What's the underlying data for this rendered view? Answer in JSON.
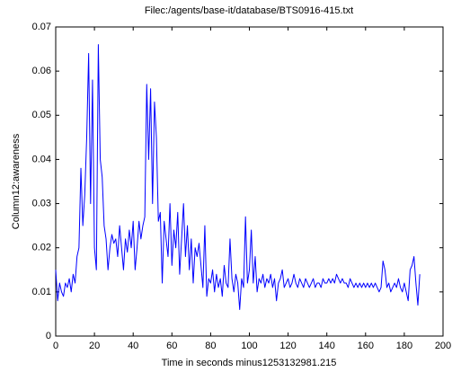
{
  "chart_data": {
    "type": "line",
    "title": "Filec:/agents/base-it/database/BTS0916-415.txt",
    "x_label": "Time in seconds minus1253132981.215",
    "y_label": "Column12:awareness",
    "xlim": [
      0,
      200
    ],
    "xticks": [
      0,
      20,
      40,
      60,
      80,
      100,
      120,
      140,
      160,
      180,
      200
    ],
    "ylim": [
      0,
      0.07
    ],
    "yticks": [
      0,
      0.01,
      0.02,
      0.03,
      0.04,
      0.05,
      0.06,
      0.07
    ],
    "x": [
      0,
      1,
      2,
      3,
      4,
      5,
      6,
      7,
      8,
      9,
      10,
      11,
      12,
      13,
      14,
      15,
      16,
      17,
      18,
      19,
      20,
      21,
      22,
      23,
      24,
      25,
      26,
      27,
      28,
      29,
      30,
      31,
      32,
      33,
      34,
      35,
      36,
      37,
      38,
      39,
      40,
      41,
      42,
      43,
      44,
      45,
      46,
      47,
      48,
      49,
      50,
      51,
      52,
      53,
      54,
      55,
      56,
      57,
      58,
      59,
      60,
      61,
      62,
      63,
      64,
      65,
      66,
      67,
      68,
      69,
      70,
      71,
      72,
      73,
      74,
      75,
      76,
      77,
      78,
      79,
      80,
      81,
      82,
      83,
      84,
      85,
      86,
      87,
      88,
      89,
      90,
      91,
      92,
      93,
      94,
      95,
      96,
      97,
      98,
      99,
      100,
      101,
      102,
      103,
      104,
      105,
      106,
      107,
      108,
      109,
      110,
      111,
      112,
      113,
      114,
      115,
      116,
      117,
      118,
      119,
      120,
      121,
      122,
      123,
      124,
      125,
      126,
      127,
      128,
      129,
      130,
      131,
      132,
      133,
      134,
      135,
      136,
      137,
      138,
      139,
      140,
      141,
      142,
      143,
      144,
      145,
      146,
      147,
      148,
      149,
      150,
      151,
      152,
      153,
      154,
      155,
      156,
      157,
      158,
      159,
      160,
      161,
      162,
      163,
      164,
      165,
      166,
      167,
      168,
      169,
      170,
      171,
      172,
      173,
      174,
      175,
      176,
      177,
      178,
      179,
      180,
      181,
      182,
      183,
      184,
      185,
      186,
      187,
      188
    ],
    "series": [
      {
        "name": "Column12:awareness",
        "color": "#0000ff",
        "values": [
          0.015,
          0.008,
          0.012,
          0.01,
          0.009,
          0.012,
          0.011,
          0.013,
          0.01,
          0.014,
          0.012,
          0.018,
          0.02,
          0.038,
          0.025,
          0.032,
          0.045,
          0.064,
          0.03,
          0.058,
          0.02,
          0.015,
          0.066,
          0.04,
          0.036,
          0.025,
          0.022,
          0.015,
          0.02,
          0.023,
          0.021,
          0.022,
          0.018,
          0.025,
          0.02,
          0.015,
          0.022,
          0.019,
          0.024,
          0.02,
          0.026,
          0.015,
          0.02,
          0.026,
          0.022,
          0.025,
          0.027,
          0.057,
          0.04,
          0.056,
          0.03,
          0.053,
          0.045,
          0.026,
          0.028,
          0.012,
          0.026,
          0.022,
          0.018,
          0.03,
          0.016,
          0.024,
          0.02,
          0.028,
          0.014,
          0.022,
          0.03,
          0.018,
          0.025,
          0.015,
          0.022,
          0.012,
          0.02,
          0.018,
          0.021,
          0.016,
          0.011,
          0.025,
          0.009,
          0.013,
          0.012,
          0.015,
          0.01,
          0.014,
          0.011,
          0.013,
          0.009,
          0.016,
          0.012,
          0.011,
          0.022,
          0.013,
          0.01,
          0.014,
          0.012,
          0.006,
          0.013,
          0.011,
          0.027,
          0.012,
          0.015,
          0.024,
          0.012,
          0.018,
          0.01,
          0.013,
          0.012,
          0.014,
          0.011,
          0.013,
          0.012,
          0.014,
          0.011,
          0.013,
          0.008,
          0.012,
          0.013,
          0.015,
          0.011,
          0.012,
          0.013,
          0.011,
          0.012,
          0.014,
          0.012,
          0.011,
          0.013,
          0.012,
          0.011,
          0.013,
          0.012,
          0.011,
          0.012,
          0.013,
          0.011,
          0.012,
          0.012,
          0.011,
          0.013,
          0.012,
          0.012,
          0.013,
          0.012,
          0.013,
          0.012,
          0.014,
          0.013,
          0.012,
          0.013,
          0.012,
          0.012,
          0.011,
          0.013,
          0.012,
          0.011,
          0.012,
          0.011,
          0.012,
          0.011,
          0.012,
          0.011,
          0.012,
          0.011,
          0.012,
          0.011,
          0.012,
          0.011,
          0.01,
          0.011,
          0.017,
          0.015,
          0.011,
          0.012,
          0.01,
          0.011,
          0.012,
          0.011,
          0.013,
          0.011,
          0.01,
          0.012,
          0.01,
          0.008,
          0.015,
          0.016,
          0.018,
          0.012,
          0.007,
          0.014
        ]
      }
    ]
  }
}
